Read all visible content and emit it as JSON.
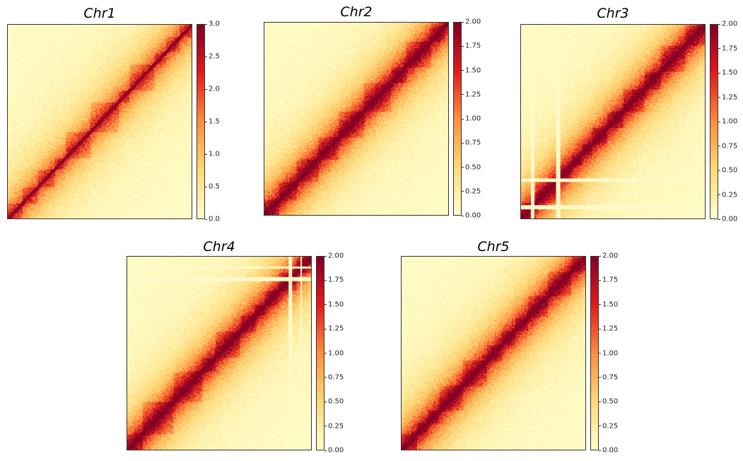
{
  "chart_data": [
    {
      "type": "heatmap",
      "title": "Chr1",
      "colorbar": {
        "min": 0.0,
        "max": 3.0,
        "ticks": [
          "0.0",
          "0.5",
          "1.0",
          "1.5",
          "2.0",
          "2.5",
          "3.0"
        ]
      },
      "colormap": [
        "#ffffcc",
        "#fed976",
        "#fd8d3c",
        "#e31a1c",
        "#800026"
      ],
      "masked_bands": []
    },
    {
      "type": "heatmap",
      "title": "Chr2",
      "colorbar": {
        "min": 0.0,
        "max": 2.0,
        "ticks": [
          "0.00",
          "0.25",
          "0.50",
          "0.75",
          "1.00",
          "1.25",
          "1.50",
          "1.75",
          "2.00"
        ]
      },
      "colormap": [
        "#ffffcc",
        "#fed976",
        "#fd8d3c",
        "#e31a1c",
        "#800026"
      ],
      "masked_bands": []
    },
    {
      "type": "heatmap",
      "title": "Chr3",
      "colorbar": {
        "min": 0.0,
        "max": 2.0,
        "ticks": [
          "0.00",
          "0.25",
          "0.50",
          "0.75",
          "1.00",
          "1.25",
          "1.50",
          "1.75",
          "2.00"
        ]
      },
      "colormap": [
        "#ffffcc",
        "#fed976",
        "#fd8d3c",
        "#e31a1c",
        "#800026"
      ],
      "masked_bands": [
        [
          0.05,
          0.07
        ],
        [
          0.19,
          0.21
        ]
      ]
    },
    {
      "type": "heatmap",
      "title": "Chr4",
      "colorbar": {
        "min": 0.0,
        "max": 2.0,
        "ticks": [
          "0.00",
          "0.25",
          "0.50",
          "0.75",
          "1.00",
          "1.25",
          "1.50",
          "1.75",
          "2.00"
        ]
      },
      "colormap": [
        "#ffffcc",
        "#fed976",
        "#fd8d3c",
        "#e31a1c",
        "#800026"
      ],
      "masked_bands": [
        [
          0.875,
          0.895
        ],
        [
          0.94,
          0.95
        ]
      ]
    },
    {
      "type": "heatmap",
      "title": "Chr5",
      "colorbar": {
        "min": 0.0,
        "max": 2.0,
        "ticks": [
          "0.00",
          "0.25",
          "0.50",
          "0.75",
          "1.00",
          "1.25",
          "1.50",
          "1.75",
          "2.00"
        ]
      },
      "colormap": [
        "#ffffcc",
        "#fed976",
        "#fd8d3c",
        "#e31a1c",
        "#800026"
      ],
      "masked_bands": []
    }
  ]
}
